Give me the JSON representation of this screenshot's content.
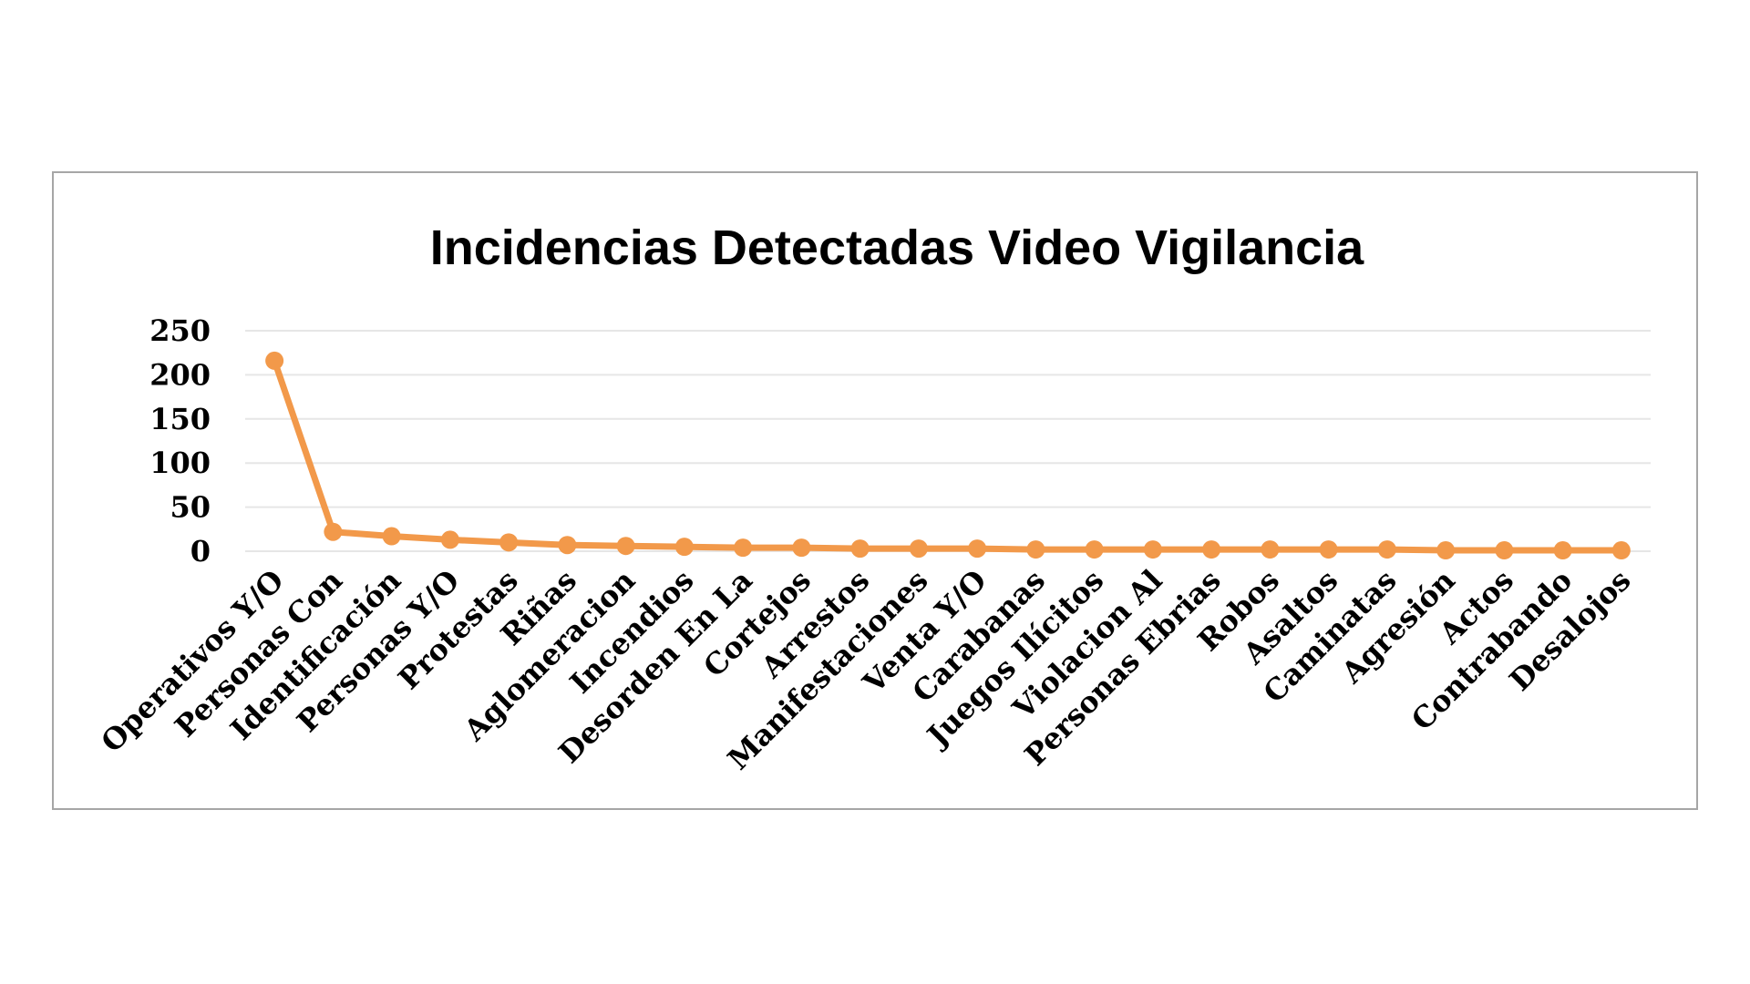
{
  "chart_data": {
    "type": "line",
    "title": "Incidencias Detectadas Video Vigilancia",
    "xlabel": "",
    "ylabel": "",
    "ylim": [
      0,
      250
    ],
    "yticks": [
      "0",
      "50",
      "100",
      "150",
      "200",
      "250"
    ],
    "grid": true,
    "legend": "none",
    "line_color": "#F2994A",
    "categories": [
      "Operativos Y/O",
      "Personas Con",
      "Identificación",
      "Personas Y/O",
      "Protestas",
      "Riñas",
      "Aglomeracion",
      "Incendios",
      "Desorden En La",
      "Cortejos",
      "Arrestos",
      "Manifestaciones",
      "Venta Y/O",
      "Carabanas",
      "Juegos Ilícitos",
      "Violacion Al",
      "Personas Ebrias",
      "Robos",
      "Asaltos",
      "Caminatas",
      "Agresión",
      "Actos",
      "Contrabando",
      "Desalojos"
    ],
    "series": [
      {
        "values": [
          216,
          22,
          17,
          13,
          10,
          7,
          6,
          5,
          4,
          4,
          3,
          3,
          3,
          2,
          2,
          2,
          2,
          2,
          2,
          2,
          1,
          1,
          1,
          1
        ]
      }
    ]
  }
}
